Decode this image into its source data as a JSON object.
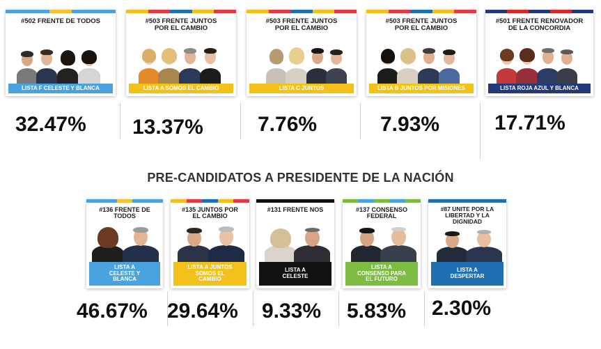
{
  "governor_section": {
    "cards": [
      {
        "title": "#502 FRENTE DE TODOS",
        "list": "LISTA F CELESTE Y BLANCA",
        "percentage": "32.47%",
        "banner_color": "#4aa3df",
        "bar_colors": [
          "#4aa3df",
          "#4aa3df",
          "#f4c430",
          "#4aa3df",
          "#4aa3df"
        ]
      },
      {
        "title": "#503 FRENTE JUNTOS POR EL CAMBIO",
        "list": "LISTA A SOMOS EL CAMBIO",
        "percentage": "13.37%",
        "banner_color": "#f2c21b",
        "bar_colors": [
          "#f2c21b",
          "#e63946",
          "#1f6fb5",
          "#f2c21b",
          "#e63946"
        ]
      },
      {
        "title": "#503 FRENTE JUNTOS POR EL CAMBIO",
        "list": "LISTA C JUNTOS",
        "percentage": "7.76%",
        "banner_color": "#f2c21b",
        "bar_colors": [
          "#f2c21b",
          "#e63946",
          "#1f6fb5",
          "#f2c21b",
          "#e63946"
        ]
      },
      {
        "title": "#503 FRENTE JUNTOS POR EL CAMBIO",
        "list": "LISTA B JUNTOS POR MISIONES",
        "percentage": "7.93%",
        "banner_color": "#f2c21b",
        "bar_colors": [
          "#f2c21b",
          "#e63946",
          "#1f6fb5",
          "#f2c21b",
          "#e63946"
        ]
      },
      {
        "title": "#501 FRENTE RENOVADOR DE LA CONCORDIA",
        "list": "LISTA ROJA AZUL Y BLANCA",
        "percentage": "17.71%",
        "banner_color": "#233a7a",
        "bar_colors": [
          "#233a7a",
          "#d62828",
          "#233a7a",
          "#d62828",
          "#233a7a"
        ]
      }
    ]
  },
  "section_title": "PRE-CANDIDATOS A PRESIDENTE DE LA NACIÓN",
  "president_section": {
    "cards": [
      {
        "title": "#136 FRENTE DE TODOS",
        "list": "LISTA A CELESTE Y BLANCA",
        "percentage": "46.67%",
        "banner_color": "#4aa3df",
        "bar_colors": [
          "#4aa3df",
          "#4aa3df",
          "#f4c430",
          "#4aa3df",
          "#4aa3df"
        ]
      },
      {
        "title": "#135 JUNTOS POR EL CAMBIO",
        "list": "LISTA A JUNTOS SOMOS EL CAMBIO",
        "percentage": "29.64%",
        "banner_color": "#f2c21b",
        "bar_colors": [
          "#f2c21b",
          "#e63946",
          "#1f6fb5",
          "#f2c21b",
          "#e63946"
        ]
      },
      {
        "title": "#131 FRENTE NOS",
        "list": "LISTA A CELESTE",
        "percentage": "9.33%",
        "banner_color": "#111111",
        "bar_colors": [
          "#111111",
          "#111111",
          "#111111",
          "#111111",
          "#111111"
        ]
      },
      {
        "title": "#137 CONSENSO FEDERAL",
        "list": "LISTA A CONSENSO PARA EL FUTURO",
        "percentage": "5.83%",
        "banner_color": "#7dbb42",
        "bar_colors": [
          "#7dbb42",
          "#4aa3df",
          "#7dbb42",
          "#4aa3df",
          "#7dbb42"
        ]
      },
      {
        "title": "#87 UNITE POR LA LIBERTAD Y LA DIGNIDAD",
        "list": "LISTA A DESPERTAR",
        "percentage": "2.30%",
        "banner_color": "#1f6fb5",
        "bar_colors": [
          "#1f6fb5",
          "#1f6fb5",
          "#1f6fb5",
          "#1f6fb5",
          "#1f6fb5"
        ]
      }
    ]
  }
}
